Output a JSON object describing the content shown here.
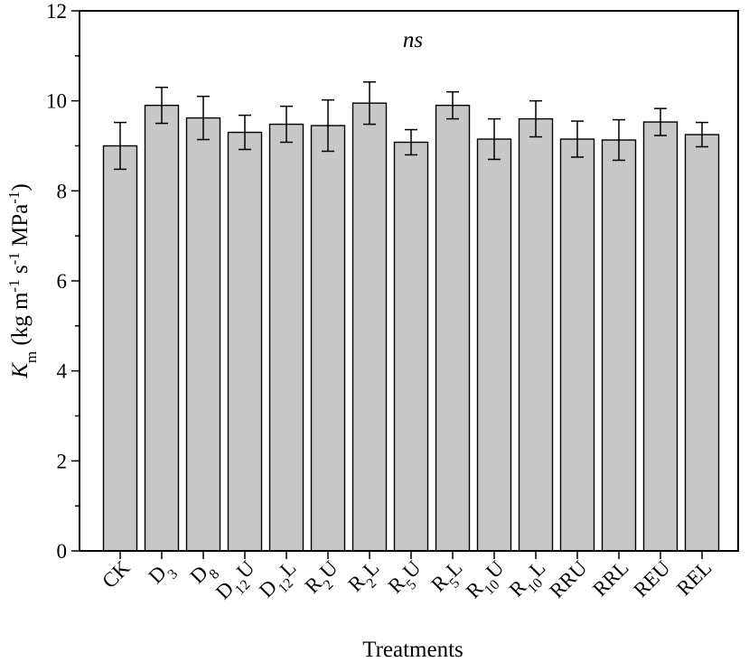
{
  "chart_data": {
    "type": "bar",
    "xlabel": "Treatments",
    "ylabel": {
      "symbol": "K",
      "symbol_sub": "m",
      "unit_parts": [
        {
          "text": " (kg m",
          "sup": "-1"
        },
        {
          "text": " s",
          "sup": "-1"
        },
        {
          "text": " MPa",
          "sup": "-1"
        },
        {
          "text": ")",
          "sup": ""
        }
      ]
    },
    "annotation": "ns",
    "ylim": [
      0,
      12
    ],
    "yticks": [
      0,
      2,
      4,
      6,
      8,
      10,
      12
    ],
    "ytick_labels": [
      "0",
      "2",
      "4",
      "6",
      "8",
      "10",
      "12"
    ],
    "minor_ytick_step": 1,
    "bar_color": "#c8c8c8",
    "categories": [
      {
        "base": "CK",
        "sub": "",
        "suffix": ""
      },
      {
        "base": "D",
        "sub": "3",
        "suffix": ""
      },
      {
        "base": "D",
        "sub": "8",
        "suffix": ""
      },
      {
        "base": "D",
        "sub": "12",
        "suffix": "U"
      },
      {
        "base": "D",
        "sub": "12",
        "suffix": "L"
      },
      {
        "base": "R",
        "sub": "2",
        "suffix": "U"
      },
      {
        "base": "R",
        "sub": "2",
        "suffix": "L"
      },
      {
        "base": "R",
        "sub": "5",
        "suffix": "U"
      },
      {
        "base": "R",
        "sub": "5",
        "suffix": "L"
      },
      {
        "base": "R",
        "sub": "10",
        "suffix": "U"
      },
      {
        "base": "R",
        "sub": "10",
        "suffix": "L"
      },
      {
        "base": "RRU",
        "sub": "",
        "suffix": ""
      },
      {
        "base": "RRL",
        "sub": "",
        "suffix": ""
      },
      {
        "base": "REU",
        "sub": "",
        "suffix": ""
      },
      {
        "base": "REL",
        "sub": "",
        "suffix": ""
      }
    ],
    "values": [
      9.0,
      9.9,
      9.62,
      9.3,
      9.48,
      9.45,
      9.95,
      9.08,
      9.9,
      9.15,
      9.6,
      9.15,
      9.13,
      9.53,
      9.25
    ],
    "errors": [
      0.52,
      0.4,
      0.48,
      0.38,
      0.4,
      0.57,
      0.47,
      0.28,
      0.3,
      0.45,
      0.4,
      0.4,
      0.45,
      0.3,
      0.27
    ]
  }
}
